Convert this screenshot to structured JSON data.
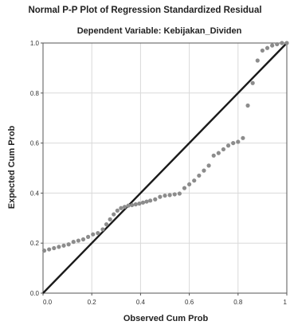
{
  "chart_data": {
    "type": "scatter",
    "title": "Normal P-P Plot of Regression Standardized Residual",
    "subtitle": "Dependent Variable: Kebijakan_Dividen",
    "xlabel": "Observed Cum Prob",
    "ylabel": "Expected Cum Prob",
    "xlim": [
      0,
      1
    ],
    "ylim": [
      0,
      1
    ],
    "x_ticks": [
      "0.0",
      "0.2",
      "0.4",
      "0.6",
      "0.8",
      "1"
    ],
    "y_ticks": [
      "0.0",
      "0.2",
      "0.4",
      "0.6",
      "0.8",
      "1.0"
    ],
    "grid": true,
    "legend": "none",
    "reference_line": {
      "from": [
        0,
        0
      ],
      "to": [
        1,
        1
      ]
    },
    "colors": {
      "points": "#8c8c8c",
      "reference_line": "#1a1a1a",
      "grid": "#d9d9d9",
      "axis": "#555555"
    },
    "points": [
      [
        0.005,
        0.17
      ],
      [
        0.025,
        0.175
      ],
      [
        0.045,
        0.18
      ],
      [
        0.065,
        0.185
      ],
      [
        0.085,
        0.19
      ],
      [
        0.105,
        0.195
      ],
      [
        0.125,
        0.205
      ],
      [
        0.145,
        0.21
      ],
      [
        0.165,
        0.215
      ],
      [
        0.185,
        0.225
      ],
      [
        0.205,
        0.235
      ],
      [
        0.225,
        0.24
      ],
      [
        0.245,
        0.255
      ],
      [
        0.26,
        0.275
      ],
      [
        0.275,
        0.295
      ],
      [
        0.29,
        0.315
      ],
      [
        0.305,
        0.33
      ],
      [
        0.32,
        0.34
      ],
      [
        0.335,
        0.345
      ],
      [
        0.35,
        0.35
      ],
      [
        0.365,
        0.352
      ],
      [
        0.38,
        0.355
      ],
      [
        0.395,
        0.358
      ],
      [
        0.41,
        0.362
      ],
      [
        0.425,
        0.366
      ],
      [
        0.44,
        0.37
      ],
      [
        0.46,
        0.375
      ],
      [
        0.48,
        0.385
      ],
      [
        0.5,
        0.39
      ],
      [
        0.52,
        0.392
      ],
      [
        0.54,
        0.395
      ],
      [
        0.56,
        0.398
      ],
      [
        0.58,
        0.42
      ],
      [
        0.6,
        0.435
      ],
      [
        0.62,
        0.45
      ],
      [
        0.64,
        0.47
      ],
      [
        0.66,
        0.49
      ],
      [
        0.68,
        0.51
      ],
      [
        0.7,
        0.55
      ],
      [
        0.72,
        0.56
      ],
      [
        0.74,
        0.575
      ],
      [
        0.76,
        0.59
      ],
      [
        0.78,
        0.6
      ],
      [
        0.8,
        0.605
      ],
      [
        0.82,
        0.62
      ],
      [
        0.84,
        0.75
      ],
      [
        0.86,
        0.84
      ],
      [
        0.88,
        0.93
      ],
      [
        0.9,
        0.97
      ],
      [
        0.92,
        0.98
      ],
      [
        0.94,
        0.99
      ],
      [
        0.96,
        0.995
      ],
      [
        0.98,
        1.0
      ],
      [
        1.0,
        1.0
      ]
    ]
  }
}
